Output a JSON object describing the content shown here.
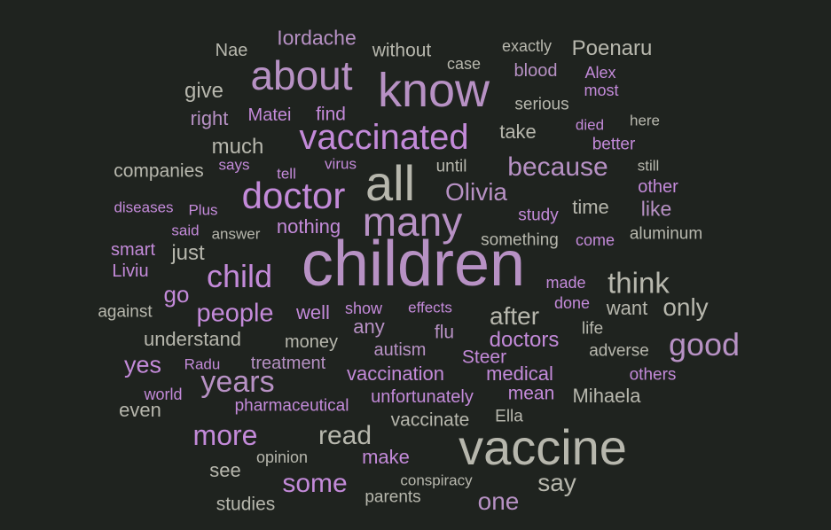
{
  "words": [
    "children",
    "vaccine",
    "know",
    "all",
    "many",
    "about",
    "vaccinated",
    "doctor",
    "child",
    "think",
    "good",
    "because",
    "Olivia",
    "years",
    "people",
    "more",
    "some",
    "read",
    "say",
    "one",
    "after",
    "doctors",
    "yes",
    "only",
    "Poenaru",
    "Iordache",
    "without",
    "exactly",
    "Nae",
    "case",
    "blood",
    "Alex",
    "most",
    "give",
    "serious",
    "right",
    "Matei",
    "find",
    "died",
    "here",
    "take",
    "better",
    "much",
    "companies",
    "says",
    "tell",
    "virus",
    "until",
    "still",
    "other",
    "diseases",
    "Plus",
    "study",
    "time",
    "like",
    "said",
    "answer",
    "nothing",
    "something",
    "come",
    "aluminum",
    "smart",
    "just",
    "Liviu",
    "go",
    "made",
    "done",
    "want",
    "against",
    "well",
    "show",
    "effects",
    "any",
    "understand",
    "money",
    "flu",
    "autism",
    "life",
    "adverse",
    "Radu",
    "treatment",
    "vaccination",
    "Steer",
    "medical",
    "others",
    "world",
    "even",
    "unfortunately",
    "mean",
    "Mihaela",
    "pharmaceutical",
    "vaccinate",
    "Ella",
    "see",
    "opinion",
    "make",
    "conspiracy",
    "studies",
    "parents"
  ],
  "colors": {
    "background": "#1f231f",
    "purple": "#b791c4",
    "violet": "#c38ad9",
    "gray": "#b7b7ad",
    "beige": "#b3b0a4"
  }
}
